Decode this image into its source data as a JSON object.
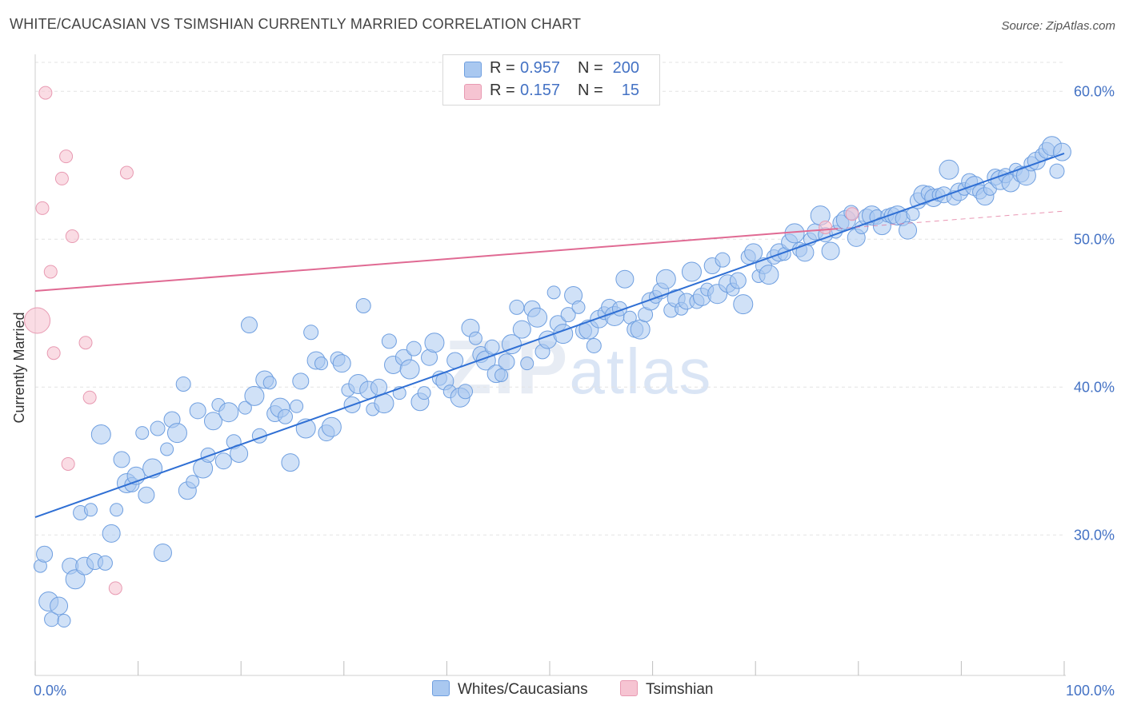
{
  "title": "WHITE/CAUCASIAN VS TSIMSHIAN CURRENTLY MARRIED CORRELATION CHART",
  "source": "Source: ZipAtlas.com",
  "watermark": {
    "zip": "ZIP",
    "atlas": "atlas"
  },
  "legend_top": [
    {
      "r_label": "R =",
      "r_value": "0.957",
      "n_label": "N =",
      "n_value": "200"
    },
    {
      "r_label": "R =",
      "r_value": "0.157",
      "n_label": "N =",
      "n_value": "15"
    }
  ],
  "legend_bottom": [
    "Whites/Caucasians",
    "Tsimshian"
  ],
  "colors": {
    "blue_fill": "#a9c8f0",
    "blue_stroke": "#6f9fe0",
    "blue_line": "#2f6fd4",
    "pink_fill": "#f6c4d2",
    "pink_stroke": "#e89ab2",
    "pink_line": "#e06a93",
    "grid": "#e3e3e3",
    "tick_text": "#4472c4"
  },
  "chart_data": {
    "type": "scatter",
    "title": "WHITE/CAUCASIAN VS TSIMSHIAN CURRENTLY MARRIED CORRELATION CHART",
    "xlabel": "",
    "ylabel": "Currently Married",
    "xlim": [
      0,
      100
    ],
    "ylim": [
      20.5,
      62.5
    ],
    "x_tick_labels": [
      {
        "value": 0,
        "label": "0.0%"
      },
      {
        "value": 100,
        "label": "100.0%"
      }
    ],
    "y_tick_labels": [
      {
        "value": 30,
        "label": "30.0%"
      },
      {
        "value": 40,
        "label": "40.0%"
      },
      {
        "value": 50,
        "label": "50.0%"
      },
      {
        "value": 60,
        "label": "60.0%"
      }
    ],
    "grid": true,
    "series": [
      {
        "name": "Whites/Caucasians",
        "r": 0.957,
        "n": 200,
        "trend": {
          "x1": 0,
          "y1": 31.2,
          "x2": 100,
          "y2": 55.8
        },
        "points": [
          [
            0.5,
            27.9
          ],
          [
            0.9,
            28.7
          ],
          [
            1.3,
            25.5
          ],
          [
            1.6,
            24.3
          ],
          [
            2.3,
            25.2
          ],
          [
            2.8,
            24.2
          ],
          [
            3.4,
            27.9
          ],
          [
            3.9,
            27.0
          ],
          [
            4.4,
            31.5
          ],
          [
            4.8,
            27.9
          ],
          [
            5.4,
            31.7
          ],
          [
            5.8,
            28.2
          ],
          [
            6.4,
            36.8
          ],
          [
            6.8,
            28.1
          ],
          [
            7.4,
            30.1
          ],
          [
            7.9,
            31.7
          ],
          [
            8.4,
            35.1
          ],
          [
            8.9,
            33.5
          ],
          [
            9.4,
            33.4
          ],
          [
            9.8,
            34.0
          ],
          [
            10.4,
            36.9
          ],
          [
            10.8,
            32.7
          ],
          [
            11.4,
            34.5
          ],
          [
            11.9,
            37.2
          ],
          [
            12.4,
            28.8
          ],
          [
            12.8,
            35.8
          ],
          [
            13.3,
            37.8
          ],
          [
            13.8,
            36.9
          ],
          [
            14.4,
            40.2
          ],
          [
            14.8,
            33.0
          ],
          [
            15.3,
            33.6
          ],
          [
            15.8,
            38.4
          ],
          [
            16.3,
            34.5
          ],
          [
            16.8,
            35.4
          ],
          [
            17.3,
            37.7
          ],
          [
            17.8,
            38.8
          ],
          [
            18.3,
            35.0
          ],
          [
            18.8,
            38.3
          ],
          [
            19.3,
            36.3
          ],
          [
            19.8,
            35.5
          ],
          [
            20.4,
            38.6
          ],
          [
            20.8,
            44.2
          ],
          [
            21.3,
            39.4
          ],
          [
            21.8,
            36.7
          ],
          [
            22.3,
            40.5
          ],
          [
            22.8,
            40.3
          ],
          [
            23.3,
            38.2
          ],
          [
            23.8,
            38.6
          ],
          [
            24.3,
            38.0
          ],
          [
            24.8,
            34.9
          ],
          [
            25.4,
            38.7
          ],
          [
            25.8,
            40.4
          ],
          [
            26.3,
            37.2
          ],
          [
            26.8,
            43.7
          ],
          [
            27.3,
            41.8
          ],
          [
            27.8,
            41.6
          ],
          [
            28.3,
            36.9
          ],
          [
            28.8,
            37.3
          ],
          [
            29.4,
            41.9
          ],
          [
            29.8,
            41.6
          ],
          [
            30.4,
            39.8
          ],
          [
            30.8,
            38.8
          ],
          [
            31.4,
            40.2
          ],
          [
            31.9,
            45.5
          ],
          [
            32.4,
            39.8
          ],
          [
            32.8,
            38.5
          ],
          [
            33.4,
            40.0
          ],
          [
            33.9,
            38.9
          ],
          [
            34.4,
            43.1
          ],
          [
            34.8,
            41.5
          ],
          [
            35.4,
            39.6
          ],
          [
            35.8,
            42.0
          ],
          [
            36.4,
            41.2
          ],
          [
            36.8,
            42.6
          ],
          [
            37.4,
            39.0
          ],
          [
            37.8,
            39.6
          ],
          [
            38.3,
            42.0
          ],
          [
            38.8,
            43.0
          ],
          [
            39.3,
            40.6
          ],
          [
            39.8,
            40.4
          ],
          [
            40.3,
            39.7
          ],
          [
            40.8,
            41.8
          ],
          [
            41.3,
            39.3
          ],
          [
            41.8,
            39.7
          ],
          [
            42.3,
            44.0
          ],
          [
            42.8,
            43.3
          ],
          [
            43.3,
            42.2
          ],
          [
            43.8,
            41.8
          ],
          [
            44.4,
            42.7
          ],
          [
            44.8,
            40.9
          ],
          [
            45.3,
            40.8
          ],
          [
            45.8,
            41.7
          ],
          [
            46.3,
            42.9
          ],
          [
            46.8,
            45.4
          ],
          [
            47.3,
            43.9
          ],
          [
            47.8,
            41.6
          ],
          [
            48.3,
            45.3
          ],
          [
            48.8,
            44.7
          ],
          [
            49.3,
            42.4
          ],
          [
            49.8,
            43.2
          ],
          [
            50.4,
            46.4
          ],
          [
            50.8,
            44.3
          ],
          [
            51.3,
            43.6
          ],
          [
            51.8,
            44.9
          ],
          [
            52.3,
            46.2
          ],
          [
            52.8,
            45.4
          ],
          [
            53.3,
            43.8
          ],
          [
            53.8,
            43.9
          ],
          [
            54.3,
            42.8
          ],
          [
            54.8,
            44.6
          ],
          [
            55.3,
            45.0
          ],
          [
            55.8,
            45.4
          ],
          [
            56.3,
            44.8
          ],
          [
            56.8,
            45.3
          ],
          [
            57.3,
            47.3
          ],
          [
            57.8,
            44.7
          ],
          [
            58.3,
            43.9
          ],
          [
            58.8,
            43.9
          ],
          [
            59.3,
            44.9
          ],
          [
            59.8,
            45.8
          ],
          [
            60.3,
            46.1
          ],
          [
            60.8,
            46.5
          ],
          [
            61.3,
            47.3
          ],
          [
            61.8,
            45.2
          ],
          [
            62.3,
            46.0
          ],
          [
            62.8,
            45.3
          ],
          [
            63.3,
            45.8
          ],
          [
            63.8,
            47.8
          ],
          [
            64.3,
            45.8
          ],
          [
            64.8,
            46.1
          ],
          [
            65.3,
            46.6
          ],
          [
            65.8,
            48.2
          ],
          [
            66.3,
            46.3
          ],
          [
            66.8,
            48.6
          ],
          [
            67.3,
            47.0
          ],
          [
            67.8,
            46.6
          ],
          [
            68.3,
            47.2
          ],
          [
            68.8,
            45.6
          ],
          [
            69.3,
            48.8
          ],
          [
            69.8,
            49.1
          ],
          [
            70.3,
            47.5
          ],
          [
            70.8,
            48.2
          ],
          [
            71.3,
            47.6
          ],
          [
            71.8,
            48.8
          ],
          [
            72.3,
            49.1
          ],
          [
            72.8,
            49.0
          ],
          [
            73.3,
            49.8
          ],
          [
            73.8,
            50.4
          ],
          [
            74.3,
            49.3
          ],
          [
            74.8,
            49.1
          ],
          [
            75.3,
            50.0
          ],
          [
            75.8,
            50.5
          ],
          [
            76.3,
            51.6
          ],
          [
            76.8,
            50.3
          ],
          [
            77.3,
            49.2
          ],
          [
            77.8,
            50.5
          ],
          [
            78.3,
            51.1
          ],
          [
            78.8,
            51.3
          ],
          [
            79.3,
            51.8
          ],
          [
            79.8,
            50.1
          ],
          [
            80.3,
            50.8
          ],
          [
            80.8,
            51.5
          ],
          [
            81.3,
            51.6
          ],
          [
            81.8,
            51.5
          ],
          [
            82.3,
            50.9
          ],
          [
            82.8,
            51.6
          ],
          [
            83.3,
            51.6
          ],
          [
            83.8,
            51.6
          ],
          [
            84.3,
            51.4
          ],
          [
            84.8,
            50.6
          ],
          [
            85.3,
            51.7
          ],
          [
            85.8,
            52.6
          ],
          [
            86.3,
            53.0
          ],
          [
            86.8,
            53.1
          ],
          [
            87.3,
            52.8
          ],
          [
            87.8,
            53.0
          ],
          [
            88.3,
            53.0
          ],
          [
            88.8,
            54.7
          ],
          [
            89.3,
            52.8
          ],
          [
            89.8,
            53.2
          ],
          [
            90.3,
            53.4
          ],
          [
            90.8,
            53.9
          ],
          [
            91.3,
            53.6
          ],
          [
            91.8,
            53.2
          ],
          [
            92.3,
            52.9
          ],
          [
            92.8,
            53.4
          ],
          [
            93.3,
            54.2
          ],
          [
            93.8,
            54.0
          ],
          [
            94.3,
            54.3
          ],
          [
            94.8,
            53.8
          ],
          [
            95.3,
            54.7
          ],
          [
            95.8,
            54.4
          ],
          [
            96.3,
            54.3
          ],
          [
            96.8,
            55.1
          ],
          [
            97.3,
            55.3
          ],
          [
            97.8,
            55.7
          ],
          [
            98.3,
            56.0
          ],
          [
            98.8,
            56.3
          ],
          [
            99.3,
            54.6
          ],
          [
            99.8,
            55.9
          ]
        ]
      },
      {
        "name": "Tsimshian",
        "r": 0.157,
        "n": 15,
        "trend": {
          "x1": 0,
          "y1": 46.5,
          "x2": 100,
          "y2": 51.9
        },
        "trend_solid_until_x": 78,
        "points": [
          [
            0.2,
            44.5
          ],
          [
            1.0,
            59.9
          ],
          [
            3.0,
            55.6
          ],
          [
            2.6,
            54.1
          ],
          [
            0.7,
            52.1
          ],
          [
            3.6,
            50.2
          ],
          [
            1.5,
            47.8
          ],
          [
            8.9,
            54.5
          ],
          [
            1.8,
            42.3
          ],
          [
            4.9,
            43.0
          ],
          [
            5.3,
            39.3
          ],
          [
            3.2,
            34.8
          ],
          [
            7.8,
            26.4
          ],
          [
            76.8,
            50.8
          ],
          [
            79.4,
            51.7
          ]
        ]
      }
    ]
  }
}
